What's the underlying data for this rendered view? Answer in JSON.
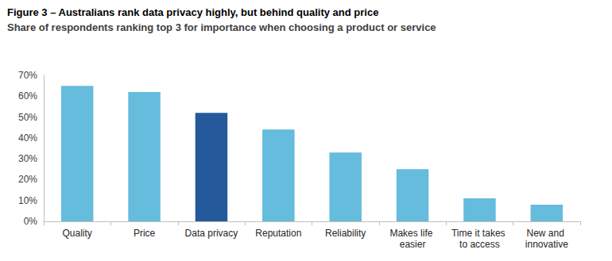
{
  "chart_data": {
    "type": "bar",
    "title": "Figure 3 – Australians rank data privacy highly, but behind quality and price",
    "subtitle": "Share of respondents ranking top 3 for importance when choosing a product or service",
    "categories": [
      "Quality",
      "Price",
      "Data privacy",
      "Reputation",
      "Reliability",
      "Makes life easier",
      "Time it takes to access",
      "New and innovative"
    ],
    "values": [
      65,
      62,
      52,
      44,
      33,
      25,
      11,
      8
    ],
    "colors": [
      "#65bcdc",
      "#65bcdc",
      "#245a9b",
      "#65bcdc",
      "#65bcdc",
      "#65bcdc",
      "#65bcdc",
      "#65bcdc"
    ],
    "ylim": [
      0,
      70
    ],
    "yticks": [
      {
        "value": 0,
        "label": "0%"
      },
      {
        "value": 10,
        "label": "10%"
      },
      {
        "value": 20,
        "label": "20%"
      },
      {
        "value": 30,
        "label": "30%"
      },
      {
        "value": 40,
        "label": "40%"
      },
      {
        "value": 50,
        "label": "50%"
      },
      {
        "value": 60,
        "label": "60%"
      },
      {
        "value": 70,
        "label": "70%"
      }
    ],
    "grid": false
  }
}
